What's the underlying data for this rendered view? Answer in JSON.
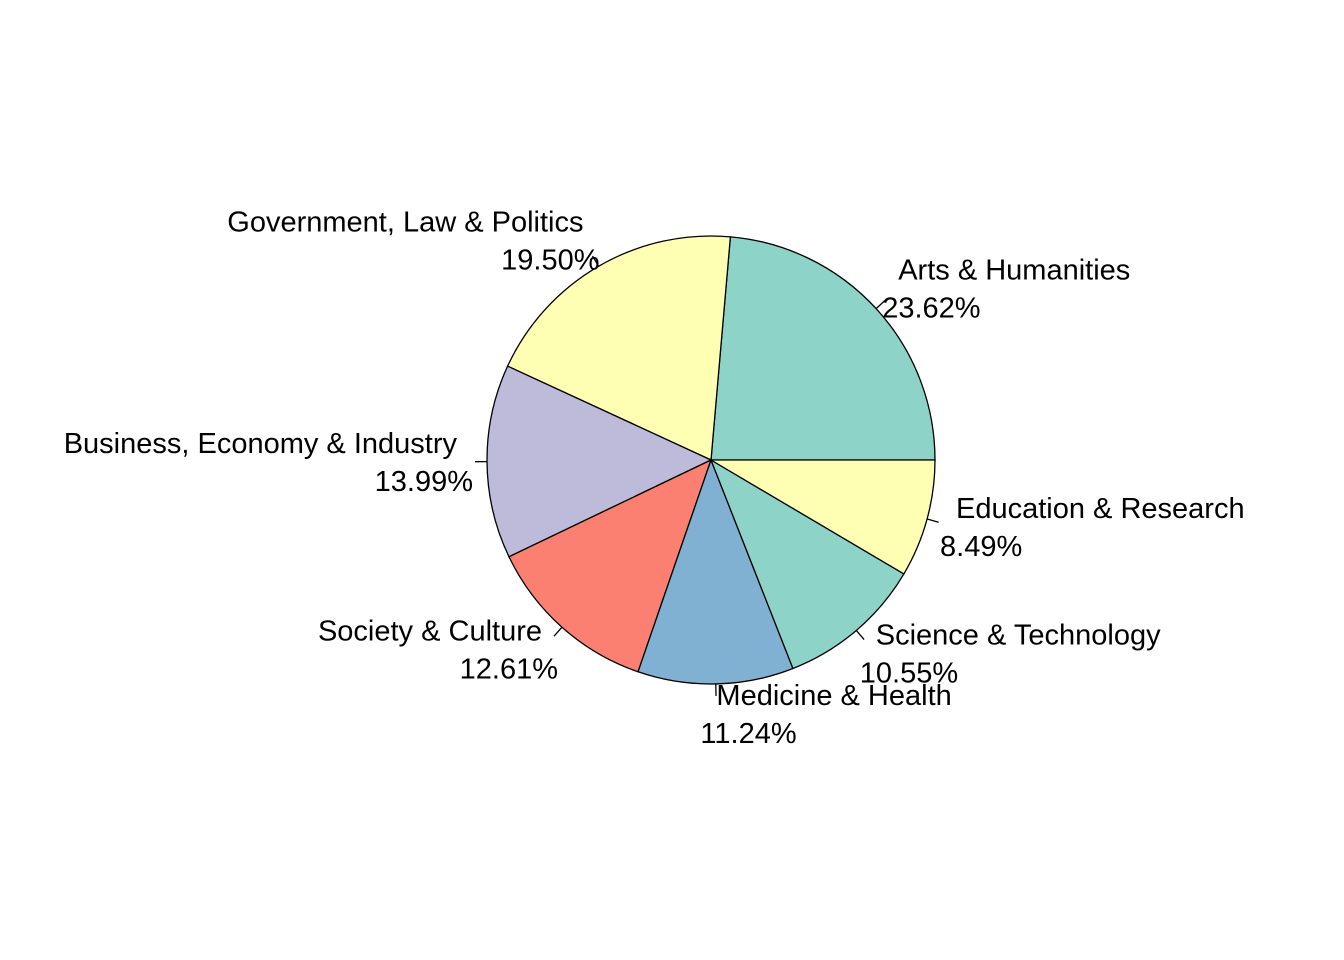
{
  "chart_data": {
    "type": "pie",
    "title": "",
    "start_angle_deg": 0,
    "direction": "counterclockwise",
    "slices": [
      {
        "label": "Arts & Humanities",
        "percent_label": "23.62%",
        "value": 23.62,
        "color": "#8DD3C7"
      },
      {
        "label": "Government, Law & Politics",
        "percent_label": "19.50%",
        "value": 19.5,
        "color": "#FFFFB3"
      },
      {
        "label": "Business, Economy & Industry",
        "percent_label": "13.99%",
        "value": 13.99,
        "color": "#BEBADA"
      },
      {
        "label": "Society & Culture",
        "percent_label": "12.61%",
        "value": 12.61,
        "color": "#FB8072"
      },
      {
        "label": "Medicine & Health",
        "percent_label": "11.24%",
        "value": 11.24,
        "color": "#80B1D3"
      },
      {
        "label": "Science & Technology",
        "percent_label": "10.55%",
        "value": 10.55,
        "color": "#8DD3C7"
      },
      {
        "label": "Education & Research",
        "percent_label": "8.49%",
        "value": 8.49,
        "color": "#FFFFB3"
      }
    ]
  }
}
